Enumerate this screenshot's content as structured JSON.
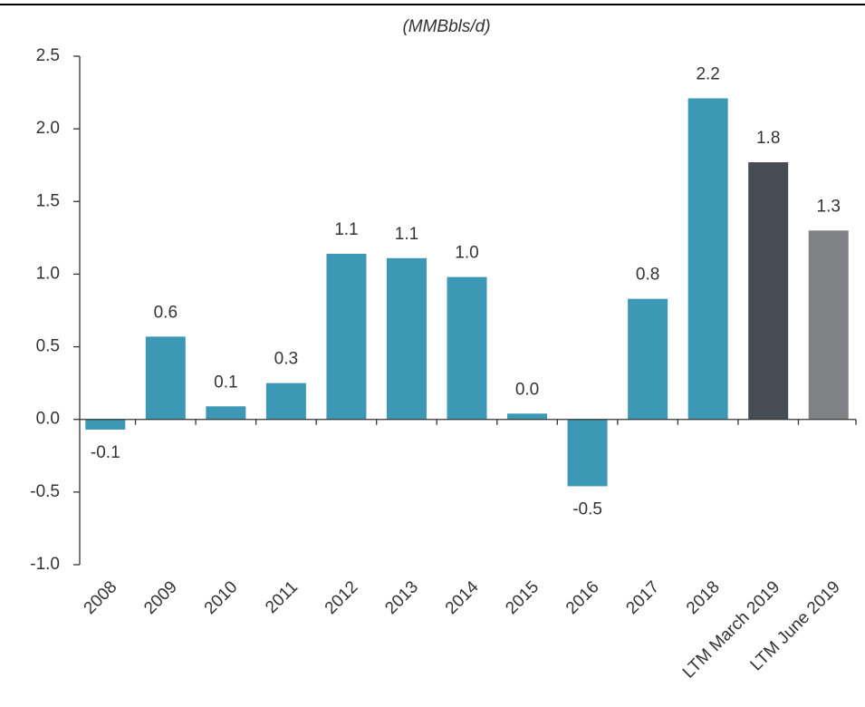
{
  "chart_data": {
    "type": "bar",
    "title": "(MMBbls/d)",
    "categories": [
      "2008",
      "2009",
      "2010",
      "2011",
      "2012",
      "2013",
      "2014",
      "2015",
      "2016",
      "2017",
      "2018",
      "LTM March 2019",
      "LTM June 2019"
    ],
    "values": [
      -0.07,
      0.57,
      0.09,
      0.25,
      1.14,
      1.11,
      0.98,
      0.04,
      -0.46,
      0.83,
      2.21,
      1.77,
      1.3
    ],
    "value_labels": [
      "-0.1",
      "0.6",
      "0.1",
      "0.3",
      "1.1",
      "1.1",
      "1.0",
      "0.0",
      "-0.5",
      "0.8",
      "2.2",
      "1.8",
      "1.3"
    ],
    "colors": [
      "#3d98b6",
      "#3d98b6",
      "#3d98b6",
      "#3d98b6",
      "#3d98b6",
      "#3d98b6",
      "#3d98b6",
      "#3d98b6",
      "#3d98b6",
      "#3d98b6",
      "#3d98b6",
      "#474b54",
      "#808184"
    ],
    "ylim": [
      -1.0,
      2.5
    ],
    "yticks": [
      {
        "value": -1,
        "label": "-1.0"
      },
      -0.5,
      {
        "value": 0,
        "label": "0.0"
      },
      0.5,
      {
        "value": 1,
        "label": "1.0"
      },
      1.5,
      {
        "value": 2,
        "label": "2.0"
      },
      2.5
    ]
  }
}
